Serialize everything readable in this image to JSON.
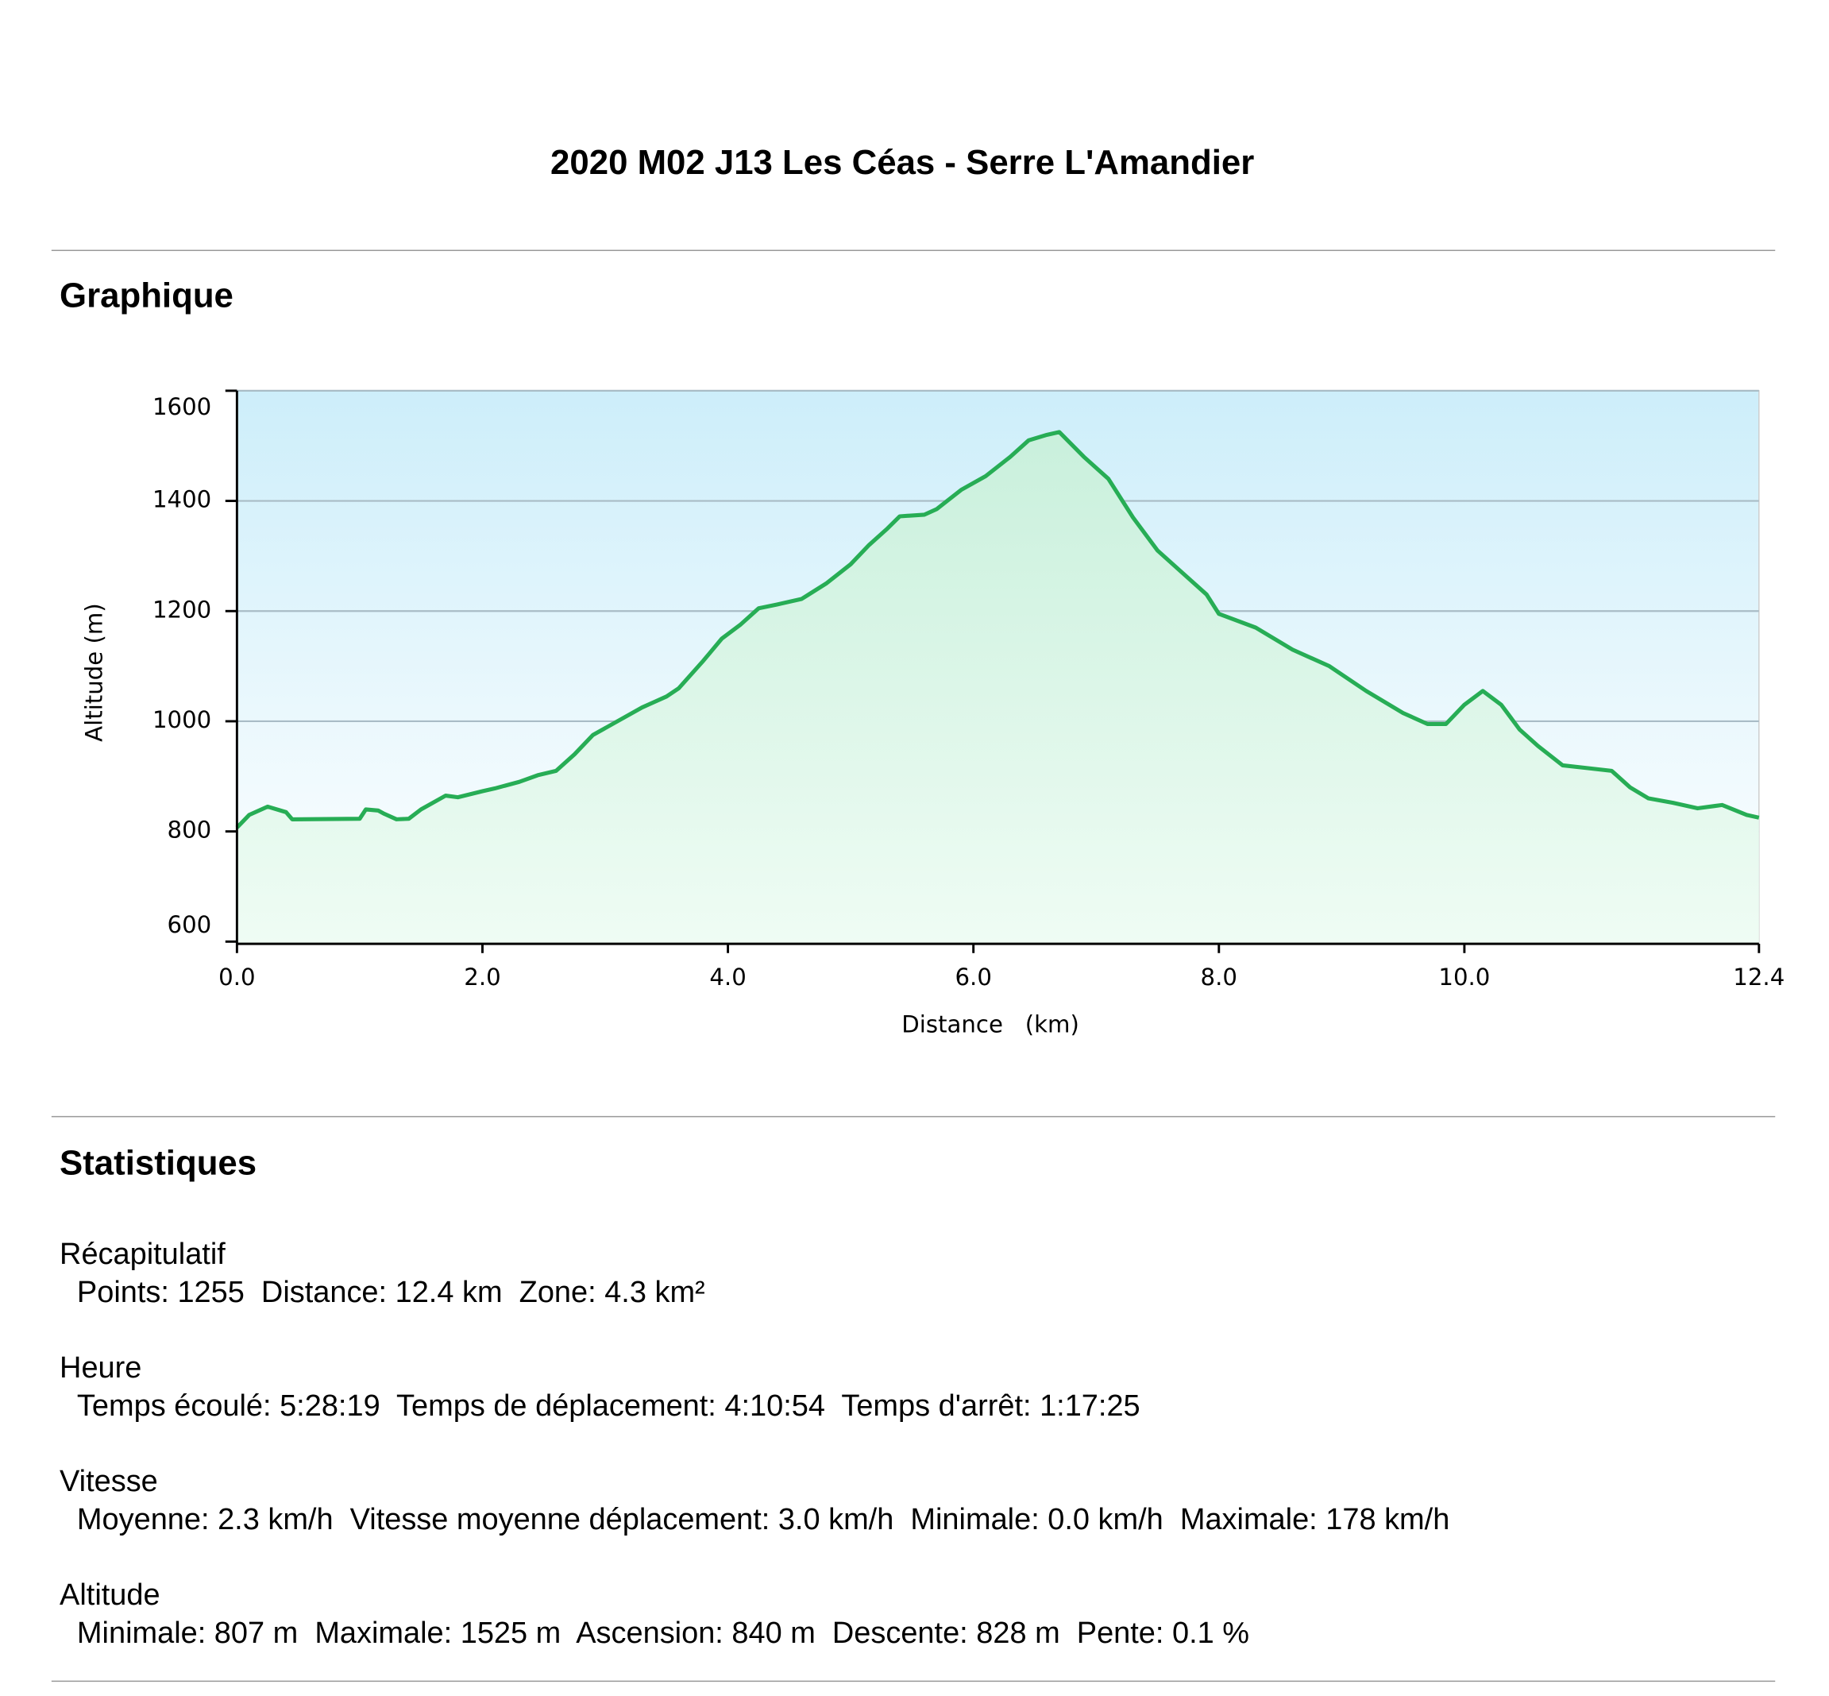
{
  "header": {
    "title": "2020 M02 J13 Les Céas - Serre L'Amandier"
  },
  "graph_heading": "Graphique",
  "chart_data": {
    "type": "line",
    "xlabel": "Distance   (km)",
    "ylabel": "Altitude (m)",
    "color": "#27ad55",
    "grid": true,
    "xlim": [
      0,
      12.4
    ],
    "ylim": [
      596,
      1600
    ],
    "xticks": [
      {
        "value": 0,
        "label": "0.0"
      },
      {
        "value": 2,
        "label": "2.0"
      },
      {
        "value": 4,
        "label": "4.0"
      },
      {
        "value": 6,
        "label": "6.0"
      },
      {
        "value": 8,
        "label": "8.0"
      },
      {
        "value": 10,
        "label": "10.0"
      },
      12.4
    ],
    "yticks": [
      600,
      800,
      1000,
      1200,
      1400,
      1600
    ],
    "x": [
      0,
      0.1,
      0.25,
      0.4,
      0.45,
      1.0,
      1.05,
      1.15,
      1.2,
      1.3,
      1.4,
      1.5,
      1.7,
      1.8,
      2.0,
      2.1,
      2.3,
      2.45,
      2.6,
      2.75,
      2.9,
      3.1,
      3.3,
      3.4,
      3.5,
      3.6,
      3.8,
      3.95,
      4.1,
      4.25,
      4.4,
      4.6,
      4.8,
      5.0,
      5.15,
      5.3,
      5.4,
      5.6,
      5.7,
      5.9,
      6.1,
      6.3,
      6.45,
      6.6,
      6.7,
      6.9,
      7.1,
      7.3,
      7.5,
      7.7,
      7.9,
      8.0,
      8.3,
      8.6,
      8.9,
      9.2,
      9.5,
      9.7,
      9.85,
      10.0,
      10.15,
      10.3,
      10.45,
      10.6,
      10.8,
      11.0,
      11.2,
      11.35,
      11.5,
      11.7,
      11.9,
      12.1,
      12.3,
      12.4
    ],
    "values": [
      807,
      830,
      845,
      835,
      822,
      823,
      840,
      838,
      832,
      822,
      823,
      840,
      865,
      862,
      873,
      878,
      890,
      902,
      910,
      940,
      975,
      1000,
      1025,
      1035,
      1045,
      1060,
      1110,
      1150,
      1175,
      1205,
      1212,
      1222,
      1250,
      1285,
      1320,
      1350,
      1372,
      1375,
      1385,
      1420,
      1445,
      1480,
      1510,
      1520,
      1525,
      1480,
      1440,
      1370,
      1310,
      1270,
      1230,
      1195,
      1170,
      1130,
      1100,
      1055,
      1015,
      995,
      995,
      1030,
      1055,
      1030,
      985,
      955,
      920,
      915,
      910,
      880,
      860,
      852,
      842,
      848,
      830,
      825
    ]
  },
  "statistics": {
    "heading": "Statistiques",
    "sections": [
      {
        "heading": "Récapitulatif",
        "line": "Points: 1255  Distance: 12.4 km  Zone: 4.3 km²"
      },
      {
        "heading": "Heure",
        "line": "Temps écoulé: 5:28:19  Temps de déplacement: 4:10:54  Temps d'arrêt: 1:17:25"
      },
      {
        "heading": "Vitesse",
        "line": "Moyenne: 2.3 km/h  Vitesse moyenne déplacement: 3.0 km/h  Minimale: 0.0 km/h  Maximale: 178 km/h"
      },
      {
        "heading": "Altitude",
        "line": "Minimale: 807 m  Maximale: 1525 m  Ascension: 840 m  Descente: 828 m  Pente: 0.1 %"
      }
    ]
  }
}
